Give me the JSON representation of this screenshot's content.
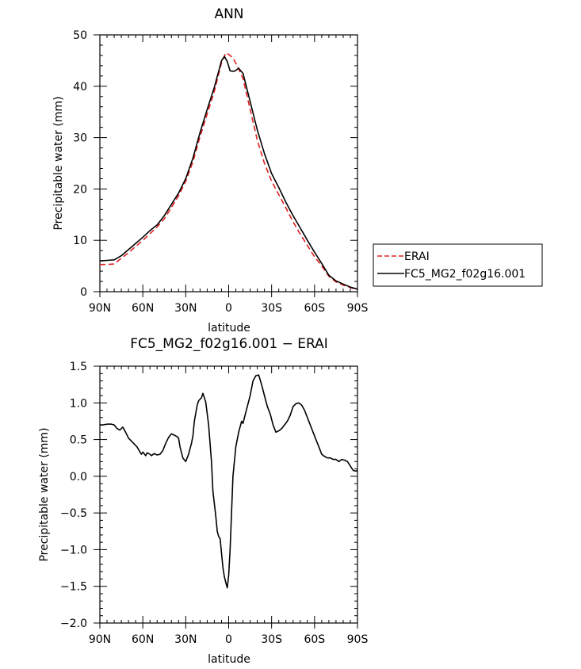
{
  "chart_data": [
    {
      "type": "line",
      "title": "ANN",
      "xlabel": "latitude",
      "ylabel": "Precipitable water (mm)",
      "x_ticks": [
        90,
        60,
        30,
        0,
        -30,
        -60,
        -90
      ],
      "x_tick_labels": [
        "90N",
        "60N",
        "30N",
        "0",
        "30S",
        "60S",
        "90S"
      ],
      "xlim": [
        90,
        -90
      ],
      "y_ticks": [
        0,
        10,
        20,
        30,
        40,
        50
      ],
      "y_tick_labels": [
        "0",
        "10",
        "20",
        "30",
        "40",
        "50"
      ],
      "ylim": [
        0,
        50
      ],
      "legend_position": "right",
      "series": [
        {
          "name": "ERAI",
          "color": "#e02020",
          "dash": "dashed",
          "points": [
            [
              90,
              5.3
            ],
            [
              85,
              5.3
            ],
            [
              80,
              5.4
            ],
            [
              75,
              6.5
            ],
            [
              70,
              7.6
            ],
            [
              65,
              8.8
            ],
            [
              60,
              10.0
            ],
            [
              55,
              11.3
            ],
            [
              50,
              12.6
            ],
            [
              45,
              14.2
            ],
            [
              40,
              16.4
            ],
            [
              35,
              18.7
            ],
            [
              30,
              21.5
            ],
            [
              25,
              25.3
            ],
            [
              20,
              30.2
            ],
            [
              15,
              34.6
            ],
            [
              10,
              39.0
            ],
            [
              5,
              44.6
            ],
            [
              2,
              46.5
            ],
            [
              0,
              46.2
            ],
            [
              -3,
              45.5
            ],
            [
              -6,
              44.0
            ],
            [
              -10,
              41.5
            ],
            [
              -15,
              35.5
            ],
            [
              -20,
              29.5
            ],
            [
              -25,
              25.0
            ],
            [
              -30,
              21.5
            ],
            [
              -35,
              18.9
            ],
            [
              -40,
              16.3
            ],
            [
              -45,
              13.6
            ],
            [
              -50,
              11.2
            ],
            [
              -55,
              9.0
            ],
            [
              -60,
              6.8
            ],
            [
              -65,
              5.0
            ],
            [
              -70,
              3.0
            ],
            [
              -75,
              1.9
            ],
            [
              -80,
              1.3
            ],
            [
              -85,
              0.8
            ],
            [
              -90,
              0.4
            ]
          ]
        },
        {
          "name": "FC5_MG2_f02g16.001",
          "color": "#000000",
          "dash": "solid",
          "points": [
            [
              90,
              6.0
            ],
            [
              85,
              6.1
            ],
            [
              80,
              6.2
            ],
            [
              75,
              7.0
            ],
            [
              70,
              8.2
            ],
            [
              65,
              9.4
            ],
            [
              60,
              10.6
            ],
            [
              55,
              11.9
            ],
            [
              50,
              13.0
            ],
            [
              45,
              14.8
            ],
            [
              40,
              17.0
            ],
            [
              35,
              19.2
            ],
            [
              30,
              22.0
            ],
            [
              25,
              26.0
            ],
            [
              20,
              31.0
            ],
            [
              15,
              35.5
            ],
            [
              10,
              39.8
            ],
            [
              5,
              45.0
            ],
            [
              3,
              45.8
            ],
            [
              1,
              44.8
            ],
            [
              -1,
              43.0
            ],
            [
              -4,
              42.9
            ],
            [
              -7,
              43.5
            ],
            [
              -10,
              42.5
            ],
            [
              -15,
              37.0
            ],
            [
              -20,
              31.5
            ],
            [
              -25,
              26.9
            ],
            [
              -30,
              23.0
            ],
            [
              -35,
              20.3
            ],
            [
              -40,
              17.4
            ],
            [
              -45,
              14.8
            ],
            [
              -50,
              12.4
            ],
            [
              -55,
              10.0
            ],
            [
              -60,
              7.7
            ],
            [
              -65,
              5.5
            ],
            [
              -70,
              3.2
            ],
            [
              -75,
              2.1
            ],
            [
              -80,
              1.5
            ],
            [
              -85,
              0.9
            ],
            [
              -90,
              0.5
            ]
          ]
        }
      ]
    },
    {
      "type": "line",
      "title": "FC5_MG2_f02g16.001 − ERAI",
      "xlabel": "latitude",
      "ylabel": "Precipitable water (mm)",
      "x_ticks": [
        90,
        60,
        30,
        0,
        -30,
        -60,
        -90
      ],
      "x_tick_labels": [
        "90N",
        "60N",
        "30N",
        "0",
        "30S",
        "60S",
        "90S"
      ],
      "xlim": [
        90,
        -90
      ],
      "y_ticks": [
        -2.0,
        -1.5,
        -1.0,
        -0.5,
        0.0,
        0.5,
        1.0,
        1.5
      ],
      "y_tick_labels": [
        "−2.0",
        "−1.5",
        "−1.0",
        "−0.5",
        "0.0",
        "0.5",
        "1.0",
        "1.5"
      ],
      "ylim": [
        -2.0,
        1.5
      ],
      "series": [
        {
          "color": "#000000",
          "dash": "solid",
          "points": [
            [
              90,
              0.7
            ],
            [
              88,
              0.7
            ],
            [
              85,
              0.71
            ],
            [
              82,
              0.71
            ],
            [
              80,
              0.7
            ],
            [
              78,
              0.65
            ],
            [
              76,
              0.63
            ],
            [
              74,
              0.67
            ],
            [
              72,
              0.6
            ],
            [
              70,
              0.52
            ],
            [
              68,
              0.48
            ],
            [
              66,
              0.44
            ],
            [
              64,
              0.4
            ],
            [
              62,
              0.33
            ],
            [
              61,
              0.3
            ],
            [
              60,
              0.33
            ],
            [
              58,
              0.28
            ],
            [
              57,
              0.32
            ],
            [
              55,
              0.3
            ],
            [
              54,
              0.28
            ],
            [
              52,
              0.31
            ],
            [
              50,
              0.29
            ],
            [
              48,
              0.3
            ],
            [
              46,
              0.35
            ],
            [
              44,
              0.45
            ],
            [
              42,
              0.53
            ],
            [
              40,
              0.58
            ],
            [
              38,
              0.56
            ],
            [
              36,
              0.54
            ],
            [
              35,
              0.52
            ],
            [
              34,
              0.4
            ],
            [
              32,
              0.25
            ],
            [
              30,
              0.2
            ],
            [
              28,
              0.3
            ],
            [
              26,
              0.45
            ],
            [
              25,
              0.55
            ],
            [
              24,
              0.75
            ],
            [
              22,
              0.97
            ],
            [
              21,
              1.03
            ],
            [
              19,
              1.07
            ],
            [
              18,
              1.13
            ],
            [
              16,
              1.01
            ],
            [
              14,
              0.7
            ],
            [
              12,
              0.2
            ],
            [
              11,
              -0.2
            ],
            [
              9,
              -0.55
            ],
            [
              8,
              -0.75
            ],
            [
              7,
              -0.82
            ],
            [
              6,
              -0.85
            ],
            [
              5,
              -1.05
            ],
            [
              4,
              -1.25
            ],
            [
              3,
              -1.37
            ],
            [
              2,
              -1.45
            ],
            [
              1,
              -1.52
            ],
            [
              0,
              -1.35
            ],
            [
              -1,
              -1.0
            ],
            [
              -2,
              -0.5
            ],
            [
              -3,
              0.0
            ],
            [
              -5,
              0.4
            ],
            [
              -7,
              0.6
            ],
            [
              -9,
              0.75
            ],
            [
              -10,
              0.72
            ],
            [
              -11,
              0.8
            ],
            [
              -13,
              0.95
            ],
            [
              -15,
              1.1
            ],
            [
              -17,
              1.3
            ],
            [
              -19,
              1.37
            ],
            [
              -21,
              1.38
            ],
            [
              -23,
              1.25
            ],
            [
              -25,
              1.1
            ],
            [
              -27,
              0.95
            ],
            [
              -29,
              0.85
            ],
            [
              -31,
              0.7
            ],
            [
              -33,
              0.6
            ],
            [
              -35,
              0.62
            ],
            [
              -37,
              0.65
            ],
            [
              -39,
              0.7
            ],
            [
              -41,
              0.75
            ],
            [
              -43,
              0.83
            ],
            [
              -45,
              0.95
            ],
            [
              -47,
              0.99
            ],
            [
              -49,
              1.0
            ],
            [
              -51,
              0.97
            ],
            [
              -53,
              0.9
            ],
            [
              -55,
              0.8
            ],
            [
              -57,
              0.7
            ],
            [
              -59,
              0.6
            ],
            [
              -61,
              0.5
            ],
            [
              -63,
              0.4
            ],
            [
              -65,
              0.3
            ],
            [
              -67,
              0.27
            ],
            [
              -69,
              0.25
            ],
            [
              -71,
              0.25
            ],
            [
              -73,
              0.23
            ],
            [
              -75,
              0.23
            ],
            [
              -77,
              0.2
            ],
            [
              -79,
              0.23
            ],
            [
              -81,
              0.22
            ],
            [
              -83,
              0.2
            ],
            [
              -85,
              0.14
            ],
            [
              -87,
              0.08
            ],
            [
              -89,
              0.07
            ],
            [
              -90,
              0.08
            ]
          ]
        }
      ]
    }
  ]
}
